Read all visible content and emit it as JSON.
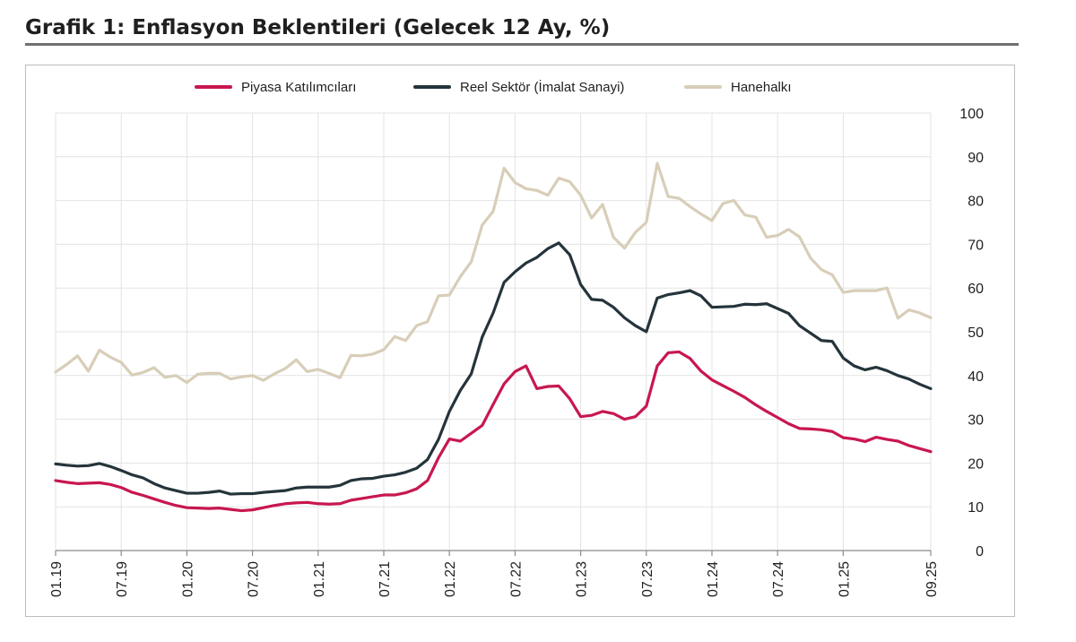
{
  "title": "Grafik 1: Enflasyon Beklentileri (Gelecek 12 Ay, %)",
  "chart_data": {
    "type": "line",
    "title": "Grafik 1: Enflasyon Beklentileri (Gelecek 12 Ay, %)",
    "xlabel": "",
    "ylabel": "",
    "ylim": [
      0,
      100
    ],
    "yticks": [
      0,
      10,
      20,
      30,
      40,
      50,
      60,
      70,
      80,
      90,
      100
    ],
    "y_axis_side": "right",
    "grid": true,
    "legend_position": "top",
    "x_start": "2019-01",
    "x_ticks": [
      {
        "label": "01.19",
        "index": 0
      },
      {
        "label": "07.19",
        "index": 6
      },
      {
        "label": "01.20",
        "index": 12
      },
      {
        "label": "07.20",
        "index": 18
      },
      {
        "label": "01.21",
        "index": 24
      },
      {
        "label": "07.21",
        "index": 30
      },
      {
        "label": "01.22",
        "index": 36
      },
      {
        "label": "07.22",
        "index": 42
      },
      {
        "label": "01.23",
        "index": 48
      },
      {
        "label": "07.23",
        "index": 54
      },
      {
        "label": "01.24",
        "index": 60
      },
      {
        "label": "07.24",
        "index": 66
      },
      {
        "label": "01.25",
        "index": 72
      },
      {
        "label": "09.25",
        "index": 80
      }
    ],
    "series": [
      {
        "name": "Piyasa Katılımcıları",
        "color": "#c8174f",
        "values": [
          16.0,
          15.6,
          15.3,
          15.4,
          15.5,
          15.1,
          14.4,
          13.3,
          12.6,
          11.8,
          11.0,
          10.3,
          9.8,
          9.7,
          9.6,
          9.7,
          9.4,
          9.1,
          9.3,
          9.8,
          10.3,
          10.7,
          10.9,
          11.0,
          10.7,
          10.6,
          10.7,
          11.5,
          11.9,
          12.3,
          12.7,
          12.7,
          13.2,
          14.1,
          16.0,
          21.2,
          25.5,
          25.0,
          26.8,
          28.6,
          33.4,
          38.1,
          40.9,
          42.2,
          37.0,
          37.5,
          37.6,
          34.7,
          30.6,
          30.9,
          31.8,
          31.3,
          30.0,
          30.6,
          33.0,
          42.2,
          45.2,
          45.4,
          43.9,
          41.0,
          39.0,
          37.7,
          36.4,
          35.0,
          33.3,
          31.8,
          30.4,
          29.0,
          27.9,
          27.8,
          27.6,
          27.2,
          25.8,
          25.5,
          24.9,
          25.9,
          25.4,
          25.0,
          24.0,
          23.3,
          22.6
        ]
      },
      {
        "name": "Reel Sektör (İmalat Sanayi)",
        "color": "#25343b",
        "values": [
          19.8,
          19.5,
          19.3,
          19.4,
          19.9,
          19.2,
          18.3,
          17.3,
          16.6,
          15.3,
          14.3,
          13.7,
          13.1,
          13.1,
          13.3,
          13.6,
          12.9,
          13.0,
          13.0,
          13.3,
          13.5,
          13.7,
          14.3,
          14.5,
          14.5,
          14.5,
          14.9,
          16.0,
          16.4,
          16.5,
          17.0,
          17.3,
          17.9,
          18.8,
          20.8,
          25.4,
          31.8,
          36.6,
          40.4,
          48.8,
          54.3,
          61.3,
          63.7,
          65.7,
          67.0,
          69.0,
          70.3,
          67.6,
          60.8,
          57.4,
          57.2,
          55.6,
          53.2,
          51.4,
          50.0,
          57.7,
          58.5,
          58.9,
          59.4,
          58.2,
          55.6,
          55.7,
          55.8,
          56.3,
          56.2,
          56.4,
          55.3,
          54.2,
          51.4,
          49.7,
          48.0,
          47.8,
          44.0,
          42.2,
          41.3,
          41.9,
          41.1,
          40.0,
          39.2,
          38.0,
          37.0
        ]
      },
      {
        "name": "Hanehalkı",
        "color": "#d8ceb8",
        "values": [
          40.8,
          42.5,
          44.5,
          41.0,
          45.8,
          44.2,
          43.0,
          40.1,
          40.7,
          41.8,
          39.6,
          40.0,
          38.4,
          40.3,
          40.5,
          40.5,
          39.2,
          39.7,
          40.0,
          38.9,
          40.4,
          41.6,
          43.6,
          40.9,
          41.4,
          40.5,
          39.5,
          44.6,
          44.5,
          44.9,
          45.9,
          48.9,
          48.0,
          51.4,
          52.3,
          58.2,
          58.4,
          62.6,
          66.0,
          74.4,
          77.5,
          87.4,
          84.1,
          82.7,
          82.3,
          81.2,
          85.1,
          84.3,
          81.2,
          76.0,
          79.1,
          71.6,
          69.1,
          72.7,
          75.0,
          88.5,
          80.9,
          80.5,
          78.6,
          76.9,
          75.4,
          79.3,
          80.0,
          76.7,
          76.2,
          71.6,
          72.0,
          73.4,
          71.7,
          66.9,
          64.2,
          63.0,
          59.0,
          59.4,
          59.4,
          59.4,
          60.0,
          53.1,
          55.0,
          54.3,
          53.2
        ]
      }
    ]
  }
}
